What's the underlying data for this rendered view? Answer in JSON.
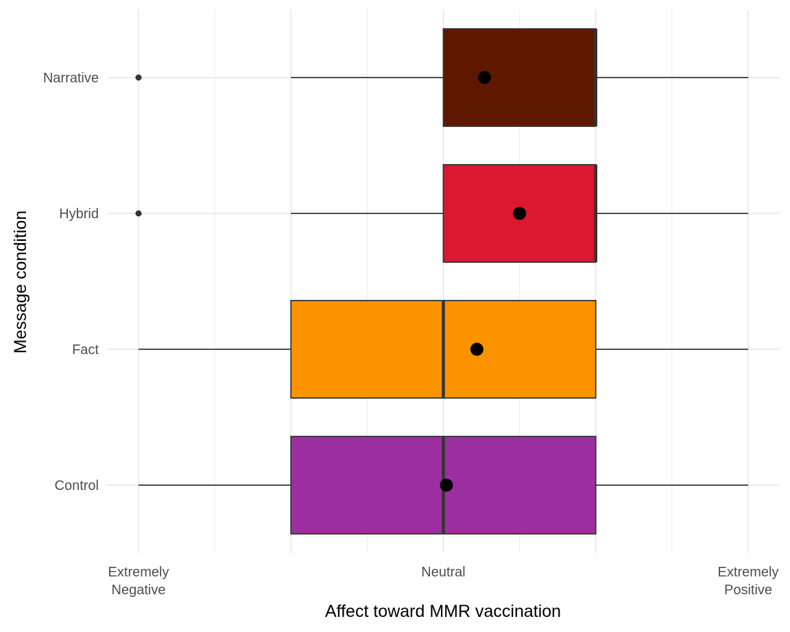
{
  "chart_data": {
    "type": "boxplot",
    "orientation": "horizontal",
    "xlabel": "Affect toward MMR vaccination",
    "ylabel": "Message condition",
    "xlim": [
      0.8,
      5.2
    ],
    "x_ticks": [
      {
        "value": 1,
        "lines": [
          "Extremely",
          "Negative"
        ]
      },
      {
        "value": 3,
        "lines": [
          "Neutral"
        ]
      },
      {
        "value": 5,
        "lines": [
          "Extremely",
          "Positive"
        ]
      }
    ],
    "grid": true,
    "legend": "none",
    "categories": [
      "Control",
      "Fact",
      "Hybrid",
      "Narrative"
    ],
    "series": [
      {
        "category": "Control",
        "color": "#9c2fa0",
        "whisker_low": 1,
        "q1": 2,
        "median": 3,
        "q3": 4,
        "whisker_high": 5,
        "mean": 3.02,
        "outliers": []
      },
      {
        "category": "Fact",
        "color": "#fb9300",
        "whisker_low": 1,
        "q1": 2,
        "median": 3,
        "q3": 4,
        "whisker_high": 5,
        "mean": 3.22,
        "outliers": []
      },
      {
        "category": "Hybrid",
        "color": "#dc1730",
        "whisker_low": 2,
        "q1": 3,
        "median": 4,
        "q3": 4,
        "whisker_high": 5,
        "mean": 3.5,
        "outliers": [
          1
        ]
      },
      {
        "category": "Narrative",
        "color": "#5f1800",
        "whisker_low": 2,
        "q1": 3,
        "median": 4,
        "q3": 4,
        "whisker_high": 5,
        "mean": 3.27,
        "outliers": [
          1
        ]
      }
    ]
  }
}
